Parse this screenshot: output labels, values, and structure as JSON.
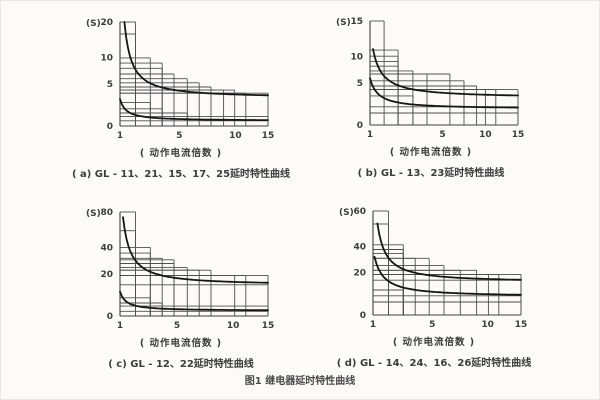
{
  "figure": {
    "caption": "图1  继电器延时特性曲线"
  },
  "shared": {
    "x_axis_label": "( 动作电流倍数 )",
    "y_unit_label": "(S)"
  },
  "style": {
    "background": "#fdfafa",
    "grid_color": "#4f4f4f",
    "axis_color": "#3f3f3f",
    "curve_color": "#161616",
    "text_color": "#3c3c3c"
  },
  "chart_data": [
    {
      "id": "a",
      "type": "line",
      "caption": "( a) GL - 11、21、15、17、25延时特性曲线",
      "xlabel": "( 动作电流倍数 )",
      "ylabel": "(S)",
      "x_ticks": {
        "labels": [
          "1",
          "5",
          "10",
          "15"
        ],
        "fractions": [
          0,
          0.4,
          0.78,
          1
        ]
      },
      "y_ticks": {
        "labels": [
          "0",
          "5",
          "10",
          "20"
        ],
        "fractions": [
          0,
          0.405,
          0.66,
          1
        ]
      },
      "xlim": [
        1,
        15
      ],
      "ylim": [
        0,
        20
      ],
      "series": [
        {
          "name": "upper-limit-curve",
          "start_s": 20,
          "asymptote_s": 4
        },
        {
          "name": "lower-limit-curve",
          "start_s": 3.5,
          "asymptote_s": 0.7
        }
      ],
      "step_levels_s": [
        20,
        15,
        10,
        9,
        8.3,
        7.5,
        6.8,
        6.2,
        5.6,
        5.2,
        4.7,
        3.4,
        2.5,
        1.9,
        1.4,
        0.8
      ],
      "steps": [
        {
          "x": 0.105,
          "y": 1.0
        },
        {
          "x": 0.105,
          "y": 0.885
        },
        {
          "x": 0.205,
          "y": 0.655
        },
        {
          "x": 0.285,
          "y": 0.605
        },
        {
          "x": 0.285,
          "y": 0.555
        },
        {
          "x": 0.365,
          "y": 0.5
        },
        {
          "x": 0.455,
          "y": 0.455
        },
        {
          "x": 0.535,
          "y": 0.415
        },
        {
          "x": 0.615,
          "y": 0.375
        },
        {
          "x": 0.7,
          "y": 0.345
        },
        {
          "x": 0.775,
          "y": 0.345
        },
        {
          "x": 0.85,
          "y": 0.315
        },
        {
          "x": 1.0,
          "y": 0.315
        },
        {
          "x": 0.205,
          "y": 0.225
        },
        {
          "x": 0.285,
          "y": 0.165
        },
        {
          "x": 0.455,
          "y": 0.125
        },
        {
          "x": 1.0,
          "y": 0.09
        },
        {
          "x": 1.0,
          "y": 0.05
        }
      ],
      "curves": [
        {
          "x0": 0.03,
          "y0": 1.0,
          "ya": 0.27,
          "b": 0.055,
          "p": 1.15
        },
        {
          "x0": 0.0,
          "y0": 0.26,
          "ya": 0.05,
          "b": 0.045,
          "p": 1.1
        }
      ]
    },
    {
      "id": "b",
      "type": "line",
      "caption": "( b) GL - 13、23延时特性曲线",
      "xlabel": "( 动作电流倍数 )",
      "ylabel": "(S)",
      "x_ticks": {
        "labels": [
          "1",
          "5",
          "10",
          "15"
        ],
        "fractions": [
          0,
          0.49,
          0.78,
          1
        ]
      },
      "y_ticks": {
        "labels": [
          "0",
          "5",
          "10",
          "15"
        ],
        "fractions": [
          0,
          0.405,
          0.66,
          1
        ]
      },
      "xlim": [
        1,
        15
      ],
      "ylim": [
        0,
        15
      ],
      "series": [
        {
          "name": "upper-limit-curve",
          "start_s": 11,
          "asymptote_s": 4
        },
        {
          "name": "lower-limit-curve",
          "start_s": 6.3,
          "asymptote_s": 2.2
        }
      ],
      "step_levels_s": [
        15,
        10.8,
        10,
        9.3,
        8.6,
        8,
        7.2,
        6,
        5.4,
        5,
        4.2,
        2.6,
        1.7
      ],
      "steps": [
        {
          "x": 0.095,
          "y": 1.0
        },
        {
          "x": 0.19,
          "y": 0.72
        },
        {
          "x": 0.19,
          "y": 0.662
        },
        {
          "x": 0.19,
          "y": 0.61
        },
        {
          "x": 0.19,
          "y": 0.565
        },
        {
          "x": 0.29,
          "y": 0.52
        },
        {
          "x": 0.385,
          "y": 0.49
        },
        {
          "x": 0.54,
          "y": 0.49
        },
        {
          "x": 0.635,
          "y": 0.425
        },
        {
          "x": 0.72,
          "y": 0.375
        },
        {
          "x": 0.78,
          "y": 0.34
        },
        {
          "x": 0.85,
          "y": 0.34
        },
        {
          "x": 1.0,
          "y": 0.34
        },
        {
          "x": 0.29,
          "y": 0.28
        },
        {
          "x": 1.0,
          "y": 0.175
        },
        {
          "x": 1.0,
          "y": 0.115
        }
      ],
      "curves": [
        {
          "x0": 0.02,
          "y0": 0.73,
          "ya": 0.26,
          "b": 0.07,
          "p": 1.1
        },
        {
          "x0": 0.0,
          "y0": 0.45,
          "ya": 0.155,
          "b": 0.06,
          "p": 1.1
        }
      ]
    },
    {
      "id": "c",
      "type": "line",
      "caption": "( c) GL - 12、22延时特性曲线",
      "xlabel": "( 动作电流倍数 )",
      "ylabel": "(S)",
      "x_ticks": {
        "labels": [
          "1",
          "5",
          "10",
          "15"
        ],
        "fractions": [
          0,
          0.385,
          0.765,
          1
        ]
      },
      "y_ticks": {
        "labels": [
          "0",
          "20",
          "40",
          "80"
        ],
        "fractions": [
          0,
          0.405,
          0.66,
          1
        ]
      },
      "xlim": [
        1,
        15
      ],
      "ylim": [
        0,
        80
      ],
      "series": [
        {
          "name": "upper-limit-curve",
          "start_s": 75,
          "asymptote_s": 16
        },
        {
          "name": "lower-limit-curve",
          "start_s": 13,
          "asymptote_s": 3
        }
      ],
      "step_levels_s": [
        80,
        65,
        40,
        36,
        33,
        30,
        27,
        24,
        22,
        20,
        16,
        14,
        10,
        8,
        3.5
      ],
      "steps": [
        {
          "x": 0.105,
          "y": 1.0
        },
        {
          "x": 0.105,
          "y": 0.82
        },
        {
          "x": 0.205,
          "y": 0.66
        },
        {
          "x": 0.205,
          "y": 0.605
        },
        {
          "x": 0.285,
          "y": 0.555
        },
        {
          "x": 0.365,
          "y": 0.54
        },
        {
          "x": 0.365,
          "y": 0.505
        },
        {
          "x": 0.455,
          "y": 0.465
        },
        {
          "x": 0.535,
          "y": 0.44
        },
        {
          "x": 0.615,
          "y": 0.44
        },
        {
          "x": 0.775,
          "y": 0.39
        },
        {
          "x": 0.85,
          "y": 0.39
        },
        {
          "x": 1.0,
          "y": 0.39
        },
        {
          "x": 1.0,
          "y": 0.3
        },
        {
          "x": 0.205,
          "y": 0.175
        },
        {
          "x": 0.285,
          "y": 0.125
        },
        {
          "x": 1.0,
          "y": 0.095
        },
        {
          "x": 1.0,
          "y": 0.045
        }
      ],
      "curves": [
        {
          "x0": 0.02,
          "y0": 0.95,
          "ya": 0.295,
          "b": 0.06,
          "p": 1.15
        },
        {
          "x0": 0.0,
          "y0": 0.235,
          "ya": 0.05,
          "b": 0.045,
          "p": 1.1
        }
      ]
    },
    {
      "id": "d",
      "type": "line",
      "caption": "( d) GL - 14、24、16、26延时特性曲线",
      "xlabel": "( 动作电流倍数 )",
      "ylabel": "(S)",
      "x_ticks": {
        "labels": [
          "1",
          "5",
          "10",
          "15"
        ],
        "fractions": [
          0,
          0.4,
          0.775,
          1
        ]
      },
      "y_ticks": {
        "labels": [
          "0",
          "20",
          "40",
          "60"
        ],
        "fractions": [
          0,
          0.41,
          0.66,
          1
        ]
      },
      "xlim": [
        1,
        15
      ],
      "ylim": [
        0,
        60
      ],
      "series": [
        {
          "name": "upper-limit-curve",
          "start_s": 52,
          "asymptote_s": 16
        },
        {
          "name": "lower-limit-curve",
          "start_s": 32,
          "asymptote_s": 9
        }
      ],
      "step_levels_s": [
        60,
        52,
        42,
        39,
        36,
        33,
        28,
        25,
        24,
        20,
        16,
        14,
        9,
        6
      ],
      "steps": [
        {
          "x": 0.105,
          "y": 1.0
        },
        {
          "x": 0.105,
          "y": 0.875
        },
        {
          "x": 0.205,
          "y": 0.675
        },
        {
          "x": 0.205,
          "y": 0.63
        },
        {
          "x": 0.205,
          "y": 0.59
        },
        {
          "x": 0.285,
          "y": 0.545
        },
        {
          "x": 0.38,
          "y": 0.545
        },
        {
          "x": 0.48,
          "y": 0.475
        },
        {
          "x": 0.59,
          "y": 0.43
        },
        {
          "x": 0.7,
          "y": 0.43
        },
        {
          "x": 0.78,
          "y": 0.39
        },
        {
          "x": 0.85,
          "y": 0.39
        },
        {
          "x": 1.0,
          "y": 0.39
        },
        {
          "x": 1.0,
          "y": 0.335
        },
        {
          "x": 0.205,
          "y": 0.24
        },
        {
          "x": 1.0,
          "y": 0.185
        },
        {
          "x": 1.0,
          "y": 0.125
        }
      ],
      "curves": [
        {
          "x0": 0.03,
          "y0": 0.88,
          "ya": 0.315,
          "b": 0.065,
          "p": 1.15
        },
        {
          "x0": 0.01,
          "y0": 0.56,
          "ya": 0.175,
          "b": 0.07,
          "p": 1.1
        }
      ]
    }
  ]
}
